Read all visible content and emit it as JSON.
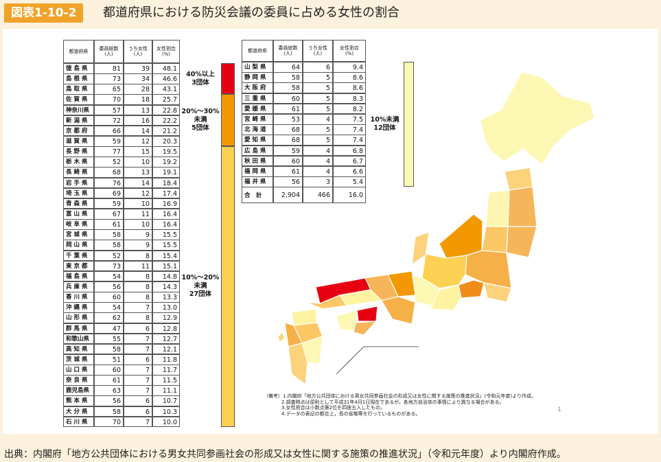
{
  "header": {
    "badge": "図表1-10-2",
    "title": "都道府県における防災会議の委員に占める女性の割合"
  },
  "tables": [
    {
      "columns": [
        "都道府県",
        "委員総数\n(人)",
        "うち女性\n(人)",
        "女性割合\n(%)"
      ],
      "groups": [
        {
          "label": "40%以上\n3団体",
          "color": "#e60012",
          "rows": [
            [
              "徳島県",
              "81",
              "39",
              "48.1"
            ],
            [
              "島根県",
              "73",
              "34",
              "46.6"
            ],
            [
              "鳥取県",
              "65",
              "28",
              "43.1"
            ]
          ]
        },
        {
          "label": "20%～30%\n未満\n5団体",
          "color": "#f39800",
          "rows": [
            [
              "佐賀県",
              "70",
              "18",
              "25.7"
            ],
            [
              "神奈川県",
              "57",
              "13",
              "22.8"
            ],
            [
              "新潟県",
              "72",
              "16",
              "22.2"
            ],
            [
              "京都府",
              "66",
              "14",
              "21.2"
            ],
            [
              "滋賀県",
              "59",
              "12",
              "20.3"
            ]
          ]
        },
        {
          "label": "10%～20%\n未満\n27団体",
          "color": "#fcd053",
          "rows": [
            [
              "長野県",
              "77",
              "15",
              "19.5"
            ],
            [
              "栃木県",
              "52",
              "10",
              "19.2"
            ],
            [
              "長崎県",
              "68",
              "13",
              "19.1"
            ],
            [
              "岩手県",
              "76",
              "14",
              "18.4"
            ],
            [
              "埼玉県",
              "69",
              "12",
              "17.4"
            ],
            [
              "青森県",
              "59",
              "10",
              "16.9"
            ],
            [
              "富山県",
              "67",
              "11",
              "16.4"
            ],
            [
              "岐阜県",
              "61",
              "10",
              "16.4"
            ],
            [
              "宮城県",
              "58",
              "9",
              "15.5"
            ],
            [
              "岡山県",
              "58",
              "9",
              "15.5"
            ],
            [
              "千葉県",
              "52",
              "8",
              "15.4"
            ],
            [
              "東京都",
              "73",
              "11",
              "15.1"
            ],
            [
              "福島県",
              "54",
              "8",
              "14.8"
            ],
            [
              "兵庫県",
              "56",
              "8",
              "14.3"
            ],
            [
              "香川県",
              "60",
              "8",
              "13.3"
            ],
            [
              "沖縄県",
              "54",
              "7",
              "13.0"
            ],
            [
              "山形県",
              "62",
              "8",
              "12.9"
            ],
            [
              "群馬県",
              "47",
              "6",
              "12.8"
            ],
            [
              "和歌山県",
              "55",
              "7",
              "12.7"
            ],
            [
              "高知県",
              "58",
              "7",
              "12.1"
            ],
            [
              "茨城県",
              "51",
              "6",
              "11.8"
            ],
            [
              "山口県",
              "60",
              "7",
              "11.7"
            ],
            [
              "奈良県",
              "61",
              "7",
              "11.5"
            ],
            [
              "鹿児島県",
              "63",
              "7",
              "11.1"
            ],
            [
              "熊本県",
              "56",
              "6",
              "10.7"
            ],
            [
              "大分県",
              "58",
              "6",
              "10.3"
            ],
            [
              "石川県",
              "70",
              "7",
              "10.0"
            ]
          ]
        }
      ]
    },
    {
      "columns": [
        "都道府県",
        "委員総数\n(人)",
        "うち女性\n(人)",
        "女性割合\n(%)"
      ],
      "groups": [
        {
          "label": "10%未満\n12団体",
          "color": "#fdf7b4",
          "rows": [
            [
              "山梨県",
              "64",
              "6",
              "9.4"
            ],
            [
              "静岡県",
              "58",
              "5",
              "8.6"
            ],
            [
              "大阪府",
              "58",
              "5",
              "8.6"
            ],
            [
              "三重県",
              "60",
              "5",
              "8.3"
            ],
            [
              "愛媛県",
              "61",
              "5",
              "8.2"
            ],
            [
              "宮崎県",
              "53",
              "4",
              "7.5"
            ],
            [
              "北海道",
              "68",
              "5",
              "7.4"
            ],
            [
              "愛知県",
              "68",
              "5",
              "7.4"
            ],
            [
              "広島県",
              "59",
              "4",
              "6.8"
            ],
            [
              "秋田県",
              "60",
              "4",
              "6.7"
            ],
            [
              "福岡県",
              "61",
              "4",
              "6.6"
            ],
            [
              "福井県",
              "56",
              "3",
              "5.4"
            ]
          ]
        }
      ],
      "total": [
        "合　計",
        "2,904",
        "466",
        "16.0"
      ]
    }
  ],
  "notes": [
    "（備考）1.内閣府「地方公共団体における男女共同参画社会の形成又は女性に関する施策の推進状況」(令和元年度)より作成。",
    "2.調査時点は原則として平成31年4月1日現在であるが，各地方自治体の事情により異なる場合がある。",
    "3.女性割合は小数点第2位を四捨五入したもの。",
    "4.データの表記の都合上，島の省略等を行っているものがある。"
  ],
  "page_number": "1",
  "source": "出典：内閣府「地方公共団体における男女共同参画社会の形成又は女性に関する施策の推進状況」（令和元年度）より内閣府作成。"
}
